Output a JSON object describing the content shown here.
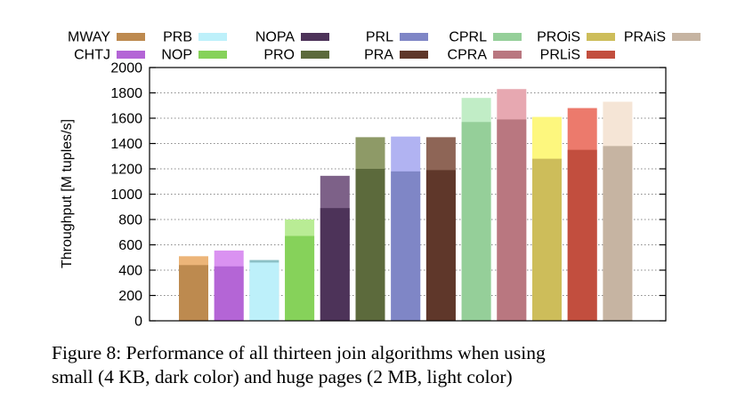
{
  "chart_data": {
    "type": "bar",
    "categories": [
      "MWAY",
      "CHTJ",
      "PRB",
      "NOP",
      "NOPA",
      "PRO",
      "PRL",
      "PRA",
      "CPRL",
      "CPRA",
      "PROiS",
      "PRLiS",
      "PRAiS"
    ],
    "series": [
      {
        "name": "",
        "values": [
          440,
          430,
          460,
          670,
          890,
          1200,
          1180,
          1190,
          1570,
          1590,
          1280,
          1350,
          1380
        ]
      },
      {
        "name": "",
        "values": [
          510,
          555,
          480,
          800,
          1145,
          1450,
          1455,
          1450,
          1760,
          1830,
          1610,
          1680,
          1730
        ]
      }
    ],
    "series_note_text": "",
    "ylabel": "Throughput [M tuples/s]",
    "ylim": [
      0,
      2000
    ],
    "yticks": [
      0,
      200,
      400,
      600,
      800,
      1000,
      1200,
      1400,
      1600,
      1800,
      2000
    ],
    "grid": "horizontal-dotted",
    "legend_placement": "top",
    "colors": {
      "small": [
        "#bd8a4f",
        "#b465d6",
        "#bdf0fa",
        "#86d25a",
        "#4d3359",
        "#5c6a3c",
        "#7f86c6",
        "#5f372a",
        "#95cf99",
        "#b97780",
        "#cdbd5a",
        "#c24e3e",
        "#c6b4a2"
      ],
      "huge": [
        "#ecb579",
        "#da92f1",
        "#8cc0c6",
        "#b9ec95",
        "#7d6188",
        "#8e9a67",
        "#b1b3f2",
        "#8e6556",
        "#c1edc6",
        "#e7a8b1",
        "#fdf77e",
        "#ec7a6c",
        "#f5e5d6"
      ]
    }
  },
  "legend": {
    "entries": [
      "MWAY",
      "PRB",
      "NOPA",
      "PRL",
      "CPRL",
      "PROiS",
      "PRAiS",
      "CHTJ",
      "NOP",
      "PRO",
      "PRA",
      "CPRA",
      "PRLiS"
    ]
  },
  "caption": {
    "line1": "Figure 8:  Performance of all thirteen join algorithms when using",
    "line2": "small (4 KB, dark color) and huge pages (2 MB, light color)"
  }
}
